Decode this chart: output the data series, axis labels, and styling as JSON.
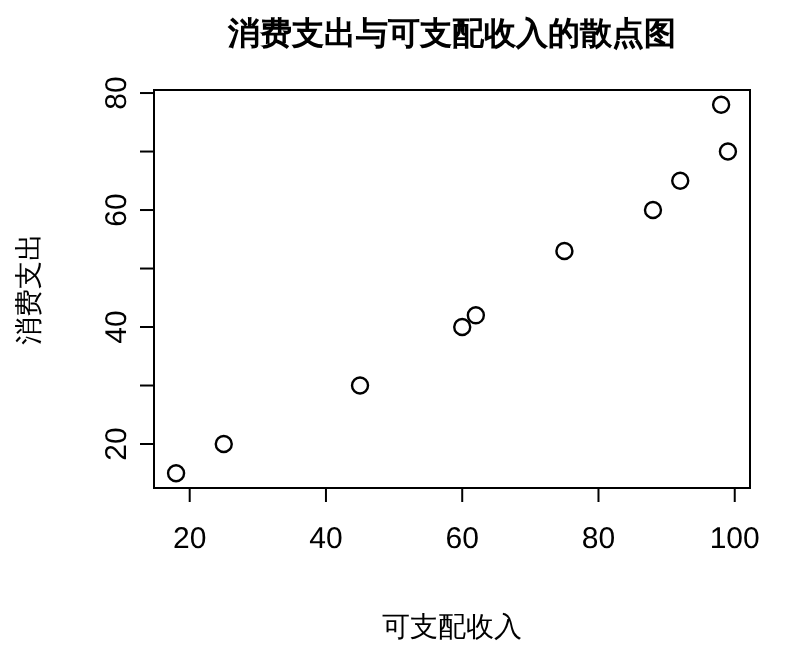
{
  "chart_data": {
    "type": "scatter",
    "title": "消费支出与可支配收入的散点图",
    "xlabel": "可支配收入",
    "ylabel": "消费支出",
    "x": [
      18,
      25,
      45,
      60,
      62,
      75,
      88,
      92,
      98,
      99
    ],
    "values": [
      15,
      20,
      30,
      40,
      42,
      53,
      60,
      65,
      78,
      70
    ],
    "color": "#000000",
    "marker": "circle",
    "grid": false,
    "xlim": [
      14.76,
      102.24
    ],
    "ylim": [
      12.48,
      80.52
    ],
    "xticks": [
      20,
      40,
      60,
      80,
      100
    ],
    "yticks": [
      20,
      {
        "value": 30,
        "label": null
      },
      40,
      {
        "value": 50,
        "label": null
      },
      60,
      {
        "value": 70,
        "label": null
      },
      80
    ]
  }
}
